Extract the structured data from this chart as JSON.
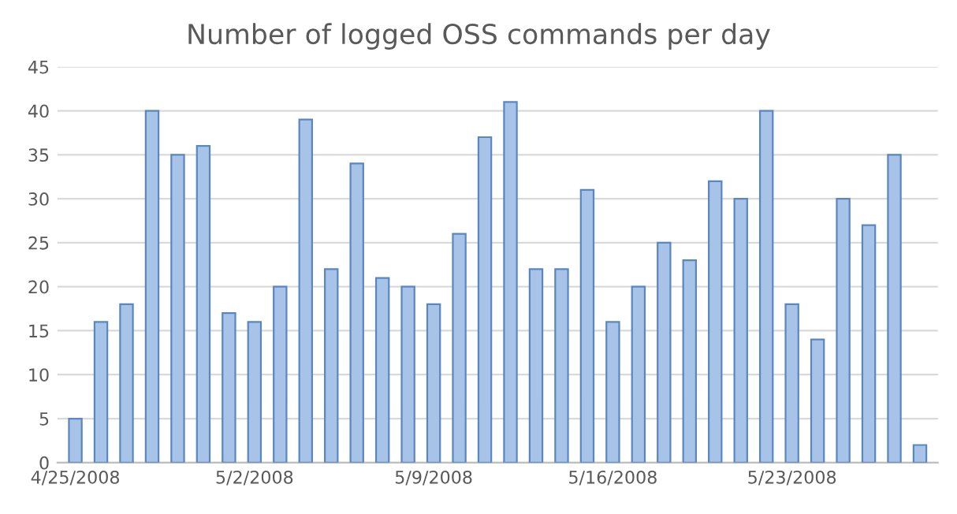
{
  "chart_data": {
    "type": "bar",
    "title": "Number of logged OSS commands per day",
    "categories": [
      "4/25/2008",
      null,
      null,
      null,
      null,
      null,
      null,
      "5/2/2008",
      null,
      null,
      null,
      null,
      null,
      null,
      "5/9/2008",
      null,
      null,
      null,
      null,
      null,
      null,
      "5/16/2008",
      null,
      null,
      null,
      null,
      null,
      null,
      "5/23/2008",
      null,
      null,
      null,
      null,
      null
    ],
    "values": [
      5,
      16,
      18,
      40,
      35,
      36,
      17,
      16,
      20,
      39,
      22,
      34,
      21,
      20,
      18,
      26,
      37,
      41,
      22,
      22,
      31,
      16,
      20,
      25,
      23,
      32,
      30,
      40,
      18,
      14,
      30,
      27,
      35,
      2
    ],
    "color": "#a7c4e8",
    "ylim": [
      0,
      45
    ],
    "yticks": [
      0,
      5,
      10,
      15,
      20,
      25,
      30,
      35,
      40,
      45
    ],
    "grid": "y"
  }
}
